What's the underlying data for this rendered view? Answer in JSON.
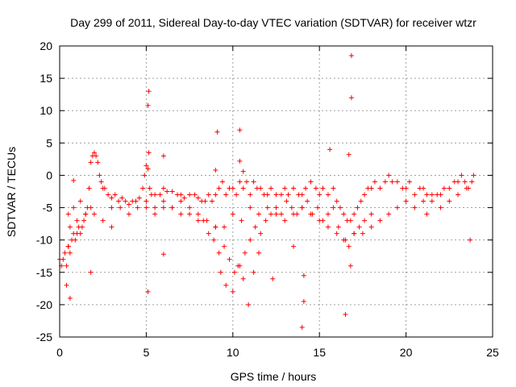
{
  "chart_data": {
    "type": "scatter",
    "title": "Day 299 of 2011, Sidereal Day-to-day VTEC variation (SDTVAR) for receiver wtzr",
    "xlabel": "GPS time / hours",
    "ylabel": "SDTVAR / TECUs",
    "xlim": [
      0,
      25
    ],
    "ylim": [
      -25,
      20
    ],
    "xticks": [
      "0",
      "5",
      "10",
      "15",
      "20",
      "25"
    ],
    "yticks": [
      "-25",
      "-20",
      "-15",
      "-10",
      "-5",
      "0",
      "5",
      "10",
      "15",
      "20"
    ],
    "grid": true,
    "marker": "+",
    "color": "#ff0000",
    "series": [
      {
        "name": "SDTVAR",
        "x": [
          0.0,
          0.1,
          0.2,
          0.3,
          0.4,
          0.5,
          0.6,
          0.7,
          0.8,
          0.9,
          1.0,
          1.1,
          1.2,
          1.3,
          1.4,
          1.5,
          1.6,
          1.7,
          1.8,
          1.9,
          2.0,
          2.1,
          2.2,
          2.3,
          2.4,
          2.5,
          2.6,
          2.8,
          3.0,
          3.2,
          3.4,
          3.6,
          3.8,
          4.0,
          4.2,
          4.4,
          4.6,
          4.8,
          4.9,
          5.0,
          5.1,
          5.2,
          5.3,
          5.5,
          5.8,
          6.0,
          6.2,
          6.5,
          6.8,
          7.0,
          7.2,
          7.5,
          7.8,
          8.0,
          8.2,
          8.4,
          8.6,
          8.8,
          9.0,
          9.2,
          9.4,
          9.6,
          9.8,
          10.0,
          10.2,
          10.4,
          10.6,
          10.8,
          11.0,
          11.2,
          11.4,
          11.6,
          11.8,
          12.0,
          12.2,
          12.5,
          12.8,
          13.0,
          13.2,
          13.5,
          13.8,
          14.0,
          14.2,
          14.5,
          14.8,
          15.0,
          15.2,
          15.5,
          15.8,
          16.0,
          16.2,
          16.4,
          16.6,
          16.8,
          17.0,
          17.2,
          17.4,
          17.6,
          17.8,
          18.0,
          18.2,
          18.5,
          18.8,
          19.0,
          19.2,
          19.5,
          19.8,
          20.0,
          20.2,
          20.5,
          20.8,
          21.0,
          21.2,
          21.5,
          21.8,
          22.0,
          22.2,
          22.5,
          22.8,
          23.0,
          23.2,
          23.4,
          23.6,
          23.8,
          23.9,
          0.5,
          0.6,
          0.8,
          1.0,
          1.2,
          1.5,
          1.8,
          2.0,
          2.5,
          3.0,
          3.5,
          4.0,
          4.5,
          5.0,
          5.5,
          6.0,
          6.5,
          7.0,
          7.5,
          8.0,
          8.5,
          9.0,
          9.5,
          10.0,
          10.5,
          11.0,
          11.5,
          12.0,
          12.5,
          13.0,
          13.5,
          14.0,
          14.5,
          15.0,
          15.5,
          16.0,
          16.5,
          17.0,
          17.5,
          18.0,
          18.5,
          19.0,
          19.5,
          20.0,
          20.5,
          21.0,
          21.5,
          22.0,
          22.5,
          23.0,
          23.5,
          5.0,
          5.5,
          6.0,
          6.5,
          7.0,
          7.5,
          8.0,
          8.3,
          8.6,
          8.9,
          9.2,
          9.5,
          9.8,
          10.1,
          10.4,
          10.7,
          11.0,
          11.3,
          11.6,
          11.9,
          12.2,
          12.5,
          12.8,
          13.1,
          13.4,
          13.7,
          14.0,
          14.3,
          14.6,
          14.9,
          15.2,
          15.5,
          15.8,
          16.1,
          16.4,
          16.7,
          17.0,
          17.3,
          17.6,
          18.0,
          9.0,
          9.3,
          9.6,
          10.0,
          10.3,
          10.6,
          10.9,
          11.2,
          11.5,
          0.5,
          0.4,
          0.6,
          0.8,
          1.8,
          5.1,
          5.15,
          5.15,
          5.1,
          6.0,
          6.0,
          9.1,
          9.0,
          10.4,
          10.4,
          10.6,
          14.1,
          14.1,
          14.0,
          15.6,
          16.5,
          16.7,
          16.85,
          16.85,
          16.8,
          21.2,
          23.7,
          3.0,
          12.3,
          13.5
        ],
        "y": [
          -13,
          -14,
          -13,
          -12,
          -14,
          -11,
          -12,
          -10,
          -9,
          -10,
          -9,
          -8,
          -9,
          -8,
          -7,
          -6,
          -5,
          -2,
          2,
          3,
          3.5,
          3,
          2,
          0,
          -1,
          -2,
          -2,
          -3,
          -3.5,
          -3,
          -4,
          -3.5,
          -4,
          -4.5,
          -4,
          -4,
          -3.5,
          -2,
          0,
          1.5,
          1,
          -2,
          -3,
          -3,
          -3,
          -2,
          -2.5,
          -2.5,
          -3,
          -3,
          -3.5,
          -3,
          -3,
          -3.5,
          -4,
          -4,
          -3,
          -4,
          -3,
          -2,
          -1,
          -3,
          -2,
          -2,
          -3,
          -1,
          -2,
          -1,
          -3,
          -1,
          -2,
          -2,
          -3,
          -3,
          -2,
          -3,
          -3,
          -2,
          -3,
          -2,
          -3,
          -3,
          -2,
          -1,
          -2,
          -3,
          -2,
          -3,
          -2,
          -4,
          -5,
          -6,
          -7,
          -7,
          -6,
          -5,
          -4,
          -3,
          -2,
          -2,
          -1,
          -2,
          -1,
          0,
          -1,
          -1,
          -2,
          -2,
          -1,
          -3,
          -2,
          -2,
          -3,
          -4,
          -3,
          -3,
          -2,
          -2,
          -1,
          -1,
          0,
          -1,
          -2,
          -1,
          0,
          -6,
          -8,
          -5,
          -7,
          -4,
          -6,
          -5,
          -6,
          -7,
          -5,
          -5,
          -6,
          -5,
          -4,
          -6,
          -5,
          -5,
          -4,
          -6,
          -7,
          -7,
          -8,
          -8,
          -6,
          -7,
          -5,
          -6,
          -5,
          -6,
          -7,
          -6,
          -5,
          -6,
          -7,
          -8,
          -9,
          -10,
          -9,
          -9,
          -8,
          -7,
          -6,
          -5,
          -4,
          -5,
          -4,
          -3,
          -5,
          -4,
          -3,
          -2,
          -5,
          -5,
          -4,
          -5,
          -6,
          -5,
          -6,
          -7,
          -9,
          -10,
          -12,
          -11,
          -13,
          -15,
          -14,
          -12,
          -10,
          -8,
          -9,
          -7,
          -6,
          -5,
          -6,
          -4,
          -5,
          -6,
          -5,
          -4,
          -6,
          -5,
          -7,
          -6,
          -5,
          -8,
          -10,
          -11,
          -9,
          -8,
          -7,
          -6,
          -8,
          -15,
          -17,
          -18,
          -14,
          -16,
          -20,
          -15,
          -12,
          -11,
          -17,
          -19,
          -0.8,
          -15,
          -18,
          3.5,
          13,
          10.8,
          -12.2,
          3,
          6.7,
          0.8,
          7,
          2.2,
          0.6,
          -15.5,
          -19.5,
          -23.5,
          4,
          -21.5,
          3.2,
          18.5,
          12,
          -14,
          -6,
          -10,
          -8,
          -16,
          -11
        ]
      }
    ]
  }
}
